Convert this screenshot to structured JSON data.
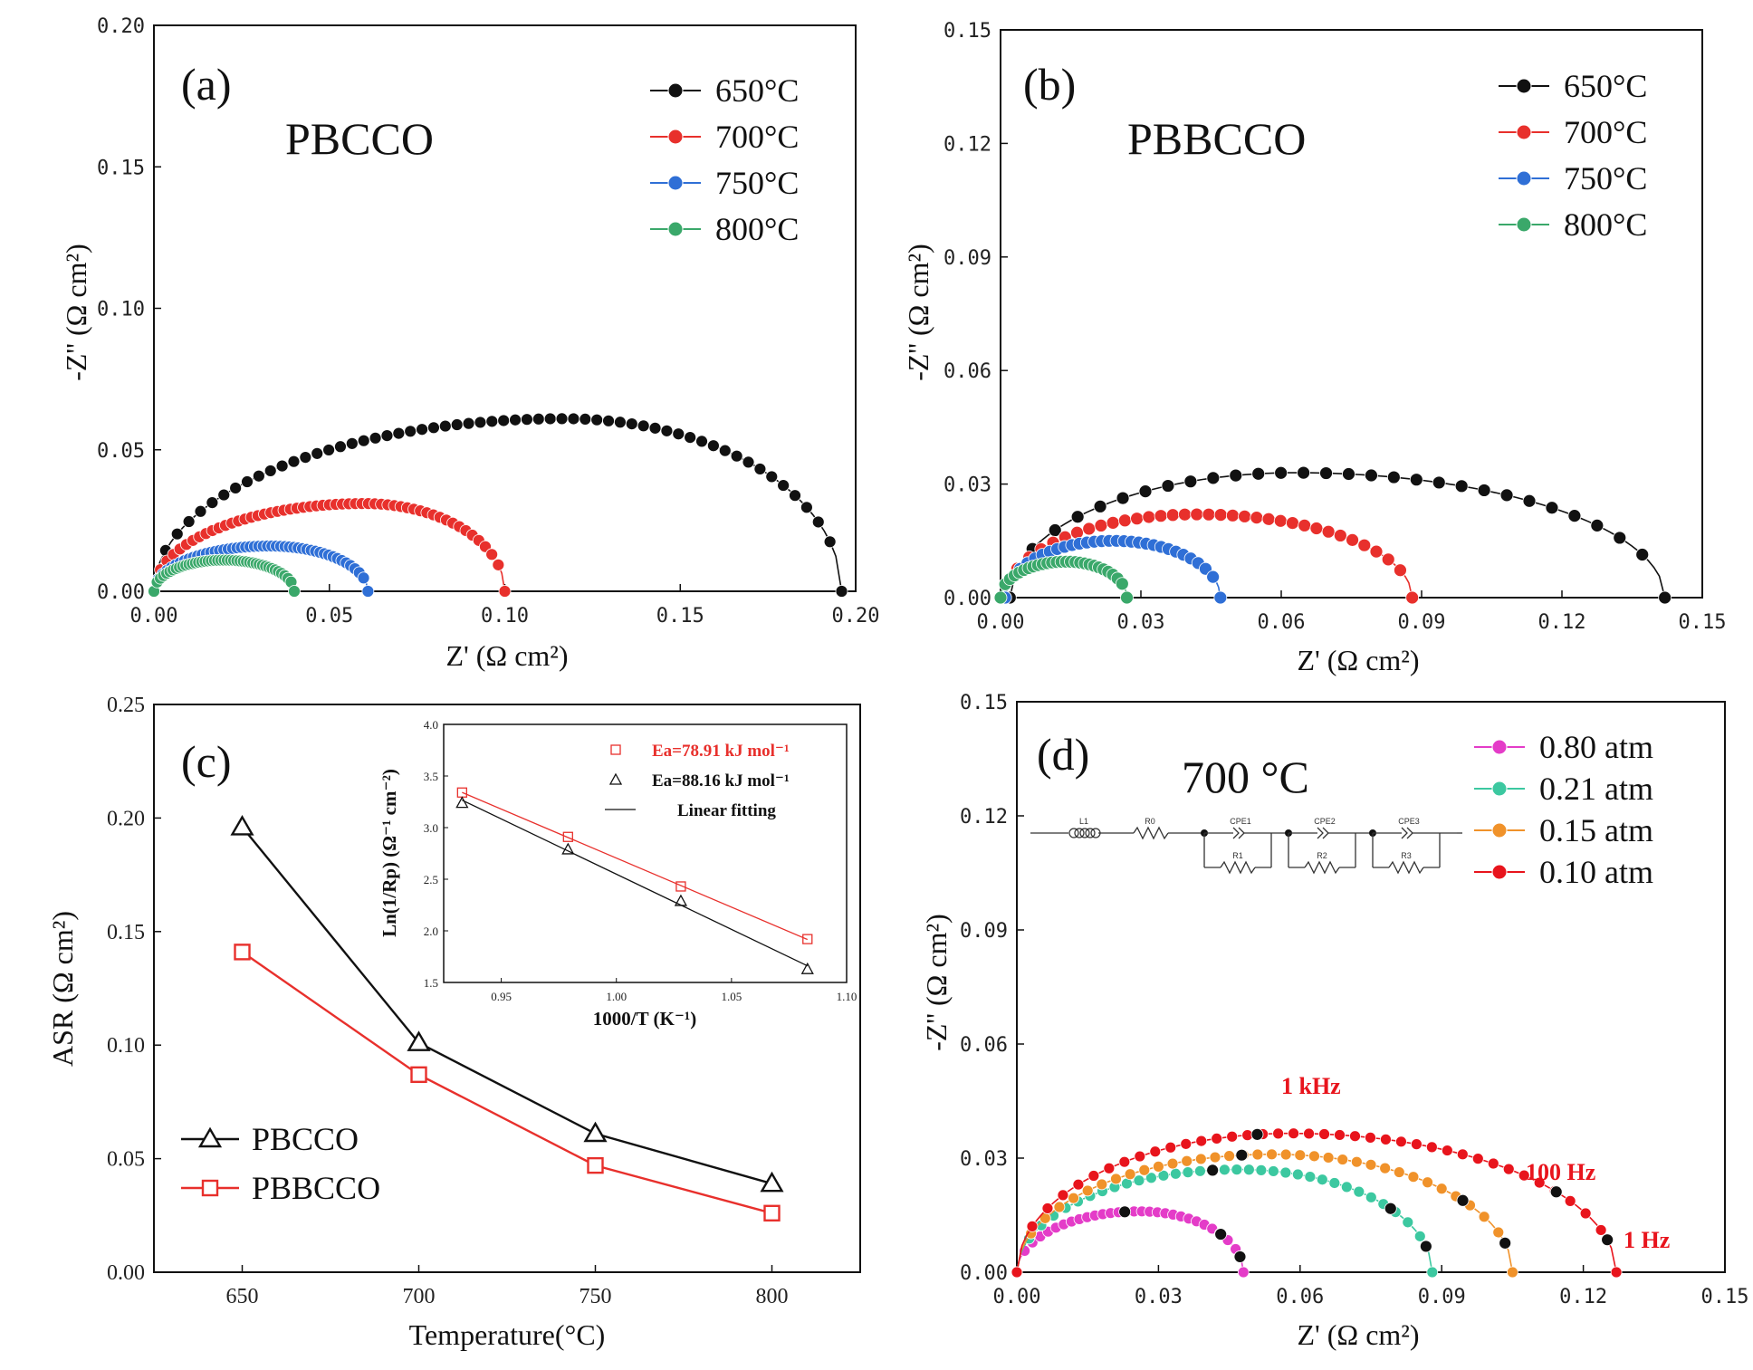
{
  "colors": {
    "black": "#111111",
    "red": "#e8302c",
    "blue": "#2f6fd6",
    "green": "#3aa86a",
    "magenta": "#e43cc8",
    "teal": "#3cc8a0",
    "orange": "#f0922a",
    "red_d": "#e8141c"
  },
  "chart_data": [
    {
      "panel": "a",
      "type": "scatter",
      "panel_label": "(a)",
      "sample_label": "PBCCO",
      "xlabel": "Z' (Ω cm²)",
      "ylabel": "-Z'' (Ω cm²)",
      "xlim": [
        0,
        0.2
      ],
      "ylim": [
        0,
        0.2
      ],
      "xticks": [
        "0.00",
        "0.05",
        "0.10",
        "0.15",
        "0.20"
      ],
      "yticks": [
        "0.00",
        "0.05",
        "0.10",
        "0.15",
        "0.20"
      ],
      "legend_position": "top-right",
      "series": [
        {
          "name": "650°C",
          "color_key": "black",
          "x_start": 0.0,
          "x_end": 0.196,
          "peak_x": 0.117,
          "peak_y": 0.061,
          "points": 60
        },
        {
          "name": "700°C",
          "color_key": "red",
          "x_start": 0.0,
          "x_end": 0.1,
          "peak_x": 0.06,
          "peak_y": 0.031,
          "points": 55
        },
        {
          "name": "750°C",
          "color_key": "blue",
          "x_start": 0.0,
          "x_end": 0.061,
          "peak_x": 0.033,
          "peak_y": 0.016,
          "points": 50
        },
        {
          "name": "800°C",
          "color_key": "green",
          "x_start": 0.0,
          "x_end": 0.04,
          "peak_x": 0.02,
          "peak_y": 0.011,
          "points": 45
        }
      ]
    },
    {
      "panel": "b",
      "type": "scatter",
      "panel_label": "(b)",
      "sample_label": "PBBCCO",
      "xlabel": "Z' (Ω cm²)",
      "ylabel": "-Z'' (Ω cm²)",
      "xlim": [
        0,
        0.15
      ],
      "ylim": [
        0,
        0.15
      ],
      "xticks": [
        "0.00",
        "0.03",
        "0.06",
        "0.09",
        "0.12",
        "0.15"
      ],
      "yticks": [
        "0.00",
        "0.03",
        "0.06",
        "0.09",
        "0.12",
        "0.15"
      ],
      "legend_position": "top-right",
      "series": [
        {
          "name": "650°C",
          "color_key": "black",
          "x_start": 0.002,
          "x_end": 0.142,
          "peak_x": 0.063,
          "peak_y": 0.033,
          "points": 30
        },
        {
          "name": "700°C",
          "color_key": "red",
          "x_start": 0.001,
          "x_end": 0.088,
          "peak_x": 0.042,
          "peak_y": 0.022,
          "points": 35
        },
        {
          "name": "750°C",
          "color_key": "blue",
          "x_start": 0.001,
          "x_end": 0.047,
          "peak_x": 0.024,
          "peak_y": 0.015,
          "points": 30
        },
        {
          "name": "800°C",
          "color_key": "green",
          "x_start": 0.0,
          "x_end": 0.027,
          "peak_x": 0.014,
          "peak_y": 0.0095,
          "points": 28
        }
      ]
    },
    {
      "panel": "c",
      "type": "line",
      "panel_label": "(c)",
      "xlabel": "Temperature(°C)",
      "ylabel": "ASR (Ω cm²)",
      "xlim": [
        625,
        825
      ],
      "ylim": [
        0,
        0.25
      ],
      "xticks": [
        "650",
        "700",
        "750",
        "800"
      ],
      "yticks": [
        "0.00",
        "0.05",
        "0.10",
        "0.15",
        "0.20",
        "0.25"
      ],
      "legend_position": "bottom-left",
      "x": [
        650,
        700,
        750,
        800
      ],
      "series": [
        {
          "name": "PBCCO",
          "color_key": "black",
          "marker": "triangle",
          "values": [
            0.196,
            0.101,
            0.061,
            0.039
          ]
        },
        {
          "name": "PBBCCO",
          "color_key": "red",
          "marker": "square",
          "values": [
            0.141,
            0.087,
            0.047,
            0.026
          ]
        }
      ],
      "inset": {
        "xlabel": "1000/T (K⁻¹)",
        "ylabel": "Ln(1/Rp) (Ω⁻¹ cm⁻²)",
        "xlim": [
          0.925,
          1.1
        ],
        "ylim": [
          1.5,
          4.0
        ],
        "xticks": [
          "0.95",
          "1.00",
          "1.05",
          "1.10"
        ],
        "yticks": [
          "1.5",
          "2.0",
          "2.5",
          "3.0",
          "3.5",
          "4.0"
        ],
        "x": [
          0.933,
          0.979,
          1.028,
          1.083
        ],
        "series": [
          {
            "name": "Ea=78.91 kJ mol⁻¹",
            "color_key": "red",
            "marker": "square",
            "values": [
              3.34,
              2.91,
              2.43,
              1.92
            ]
          },
          {
            "name": "Ea=88.16 kJ mol⁻¹",
            "color_key": "black",
            "marker": "triangle",
            "values": [
              3.24,
              2.79,
              2.29,
              1.63
            ]
          }
        ],
        "fit_label": "Linear fitting"
      }
    },
    {
      "panel": "d",
      "type": "scatter",
      "panel_label": "(d)",
      "sample_label": "700 °C",
      "xlabel": "Z' (Ω cm²)",
      "ylabel": "-Z'' (Ω cm²)",
      "xlim": [
        0,
        0.15
      ],
      "ylim": [
        0,
        0.15
      ],
      "xticks": [
        "0.00",
        "0.03",
        "0.06",
        "0.09",
        "0.12",
        "0.15"
      ],
      "yticks": [
        "0.00",
        "0.03",
        "0.06",
        "0.09",
        "0.12",
        "0.15"
      ],
      "legend_position": "top-right",
      "series": [
        {
          "name": "0.80 atm",
          "color_key": "magenta",
          "x_start": 0.0,
          "x_end": 0.048,
          "peak_x": 0.026,
          "peak_y": 0.016,
          "points": 30
        },
        {
          "name": "0.21 atm",
          "color_key": "teal",
          "x_start": 0.0,
          "x_end": 0.088,
          "peak_x": 0.047,
          "peak_y": 0.027,
          "points": 35
        },
        {
          "name": "0.15 atm",
          "color_key": "orange",
          "x_start": 0.0,
          "x_end": 0.105,
          "peak_x": 0.054,
          "peak_y": 0.031,
          "points": 36
        },
        {
          "name": "0.10 atm",
          "color_key": "red_d",
          "x_start": 0.0,
          "x_end": 0.127,
          "peak_x": 0.058,
          "peak_y": 0.0365,
          "points": 40
        }
      ],
      "frequency_labels": [
        "1 kHz",
        "100 Hz",
        "1 Hz"
      ],
      "circuit_labels": [
        "L1",
        "R0",
        "CPE1",
        "R1",
        "CPE2",
        "R2",
        "CPE3",
        "R3"
      ]
    }
  ]
}
